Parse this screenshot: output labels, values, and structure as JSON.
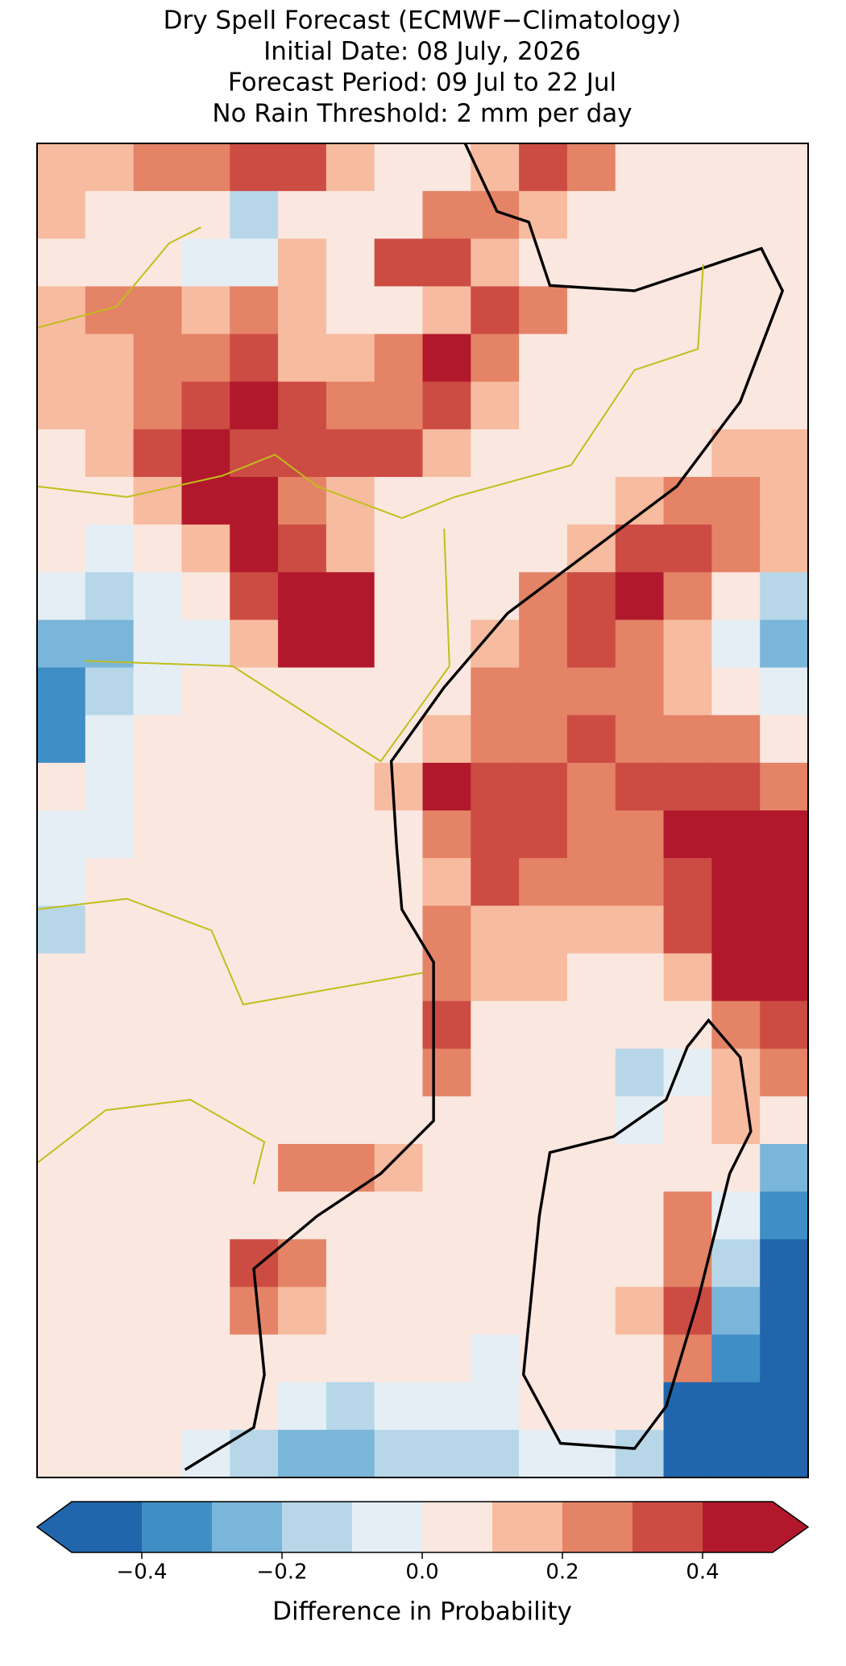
{
  "chart_data": {
    "type": "heatmap",
    "title": [
      "Dry Spell Forecast (ECMWF−Climatology)",
      "Initial Date: 08 July, 2026",
      "Forecast Period: 09 Jul to 22 Jul",
      "No Rain Threshold: 2 mm per day"
    ],
    "values": [
      [
        0.15,
        0.15,
        0.2,
        0.25,
        0.3,
        0.35,
        0.15,
        0.05,
        0.05,
        0.1,
        0.35,
        0.25,
        0.05,
        0.05,
        0.05,
        0.05
      ],
      [
        0.1,
        0.05,
        0.05,
        0.0,
        -0.15,
        0.05,
        0.05,
        0.05,
        0.25,
        0.2,
        0.1,
        0.05,
        0.05,
        0.05,
        0.05,
        0.05
      ],
      [
        0.05,
        0.0,
        0.0,
        -0.05,
        -0.1,
        0.1,
        0.05,
        0.3,
        0.35,
        0.15,
        0.05,
        0.05,
        0.05,
        0.05,
        0.05,
        0.05
      ],
      [
        0.15,
        0.2,
        0.2,
        0.15,
        0.25,
        0.1,
        0.05,
        0.05,
        0.15,
        0.3,
        0.2,
        0.05,
        0.05,
        0.05,
        0.05,
        0.05
      ],
      [
        0.1,
        0.15,
        0.2,
        0.25,
        0.35,
        0.15,
        0.1,
        0.2,
        0.4,
        0.25,
        0.05,
        0.05,
        0.05,
        0.05,
        0.05,
        0.05
      ],
      [
        0.1,
        0.15,
        0.25,
        0.35,
        0.4,
        0.3,
        0.2,
        0.25,
        0.35,
        0.1,
        0.05,
        0.05,
        0.05,
        0.05,
        0.05,
        0.05
      ],
      [
        0.05,
        0.15,
        0.3,
        0.4,
        0.35,
        0.3,
        0.3,
        0.35,
        0.15,
        0.05,
        0.05,
        0.05,
        0.05,
        0.05,
        0.1,
        0.15
      ],
      [
        0.05,
        0.05,
        0.1,
        0.4,
        0.4,
        0.25,
        0.1,
        0.05,
        0.05,
        0.05,
        0.05,
        0.05,
        0.15,
        0.25,
        0.2,
        0.15
      ],
      [
        0.0,
        -0.05,
        0.05,
        0.15,
        0.45,
        0.35,
        0.1,
        0.05,
        0.05,
        0.05,
        0.05,
        0.15,
        0.35,
        0.3,
        0.2,
        0.1
      ],
      [
        -0.1,
        -0.2,
        -0.05,
        0.05,
        0.3,
        0.45,
        0.4,
        0.05,
        0.05,
        0.05,
        0.2,
        0.35,
        0.45,
        0.25,
        0.05,
        -0.15
      ],
      [
        -0.3,
        -0.25,
        -0.1,
        -0.05,
        0.1,
        0.45,
        0.4,
        0.05,
        0.05,
        0.1,
        0.2,
        0.3,
        0.25,
        0.1,
        -0.1,
        -0.25
      ],
      [
        -0.4,
        -0.15,
        -0.05,
        0.0,
        0.0,
        0.05,
        0.05,
        0.05,
        0.05,
        0.2,
        0.2,
        0.25,
        0.2,
        0.15,
        0.0,
        -0.1
      ],
      [
        -0.4,
        -0.1,
        0.0,
        0.0,
        0.0,
        0.05,
        0.05,
        0.05,
        0.15,
        0.25,
        0.2,
        0.3,
        0.25,
        0.2,
        0.2,
        0.05
      ],
      [
        0.0,
        -0.05,
        0.0,
        0.0,
        0.05,
        0.05,
        0.05,
        0.1,
        0.45,
        0.35,
        0.3,
        0.25,
        0.3,
        0.35,
        0.3,
        0.25
      ],
      [
        -0.05,
        -0.1,
        0.0,
        0.0,
        0.05,
        0.05,
        0.05,
        0.05,
        0.25,
        0.3,
        0.35,
        0.2,
        0.25,
        0.45,
        0.45,
        0.45
      ],
      [
        -0.1,
        0.0,
        0.0,
        0.05,
        0.05,
        0.05,
        0.05,
        0.05,
        0.1,
        0.3,
        0.25,
        0.2,
        0.2,
        0.35,
        0.45,
        0.45
      ],
      [
        -0.15,
        0.0,
        0.0,
        0.05,
        0.05,
        0.05,
        0.05,
        0.05,
        0.2,
        0.15,
        0.15,
        0.1,
        0.15,
        0.3,
        0.4,
        0.45
      ],
      [
        0.05,
        0.0,
        0.05,
        0.0,
        0.05,
        0.05,
        0.05,
        0.05,
        0.25,
        0.1,
        0.1,
        0.05,
        0.0,
        0.1,
        0.4,
        0.45
      ],
      [
        0.05,
        0.05,
        0.05,
        0.0,
        0.05,
        0.05,
        0.05,
        0.05,
        0.3,
        0.05,
        0.05,
        0.05,
        0.0,
        0.0,
        0.2,
        0.3
      ],
      [
        0.05,
        0.05,
        0.05,
        0.05,
        0.05,
        0.05,
        0.05,
        0.05,
        0.25,
        0.05,
        0.05,
        0.0,
        -0.15,
        -0.05,
        0.1,
        0.2
      ],
      [
        0.05,
        0.05,
        0.0,
        0.05,
        0.05,
        0.05,
        0.05,
        0.05,
        0.05,
        0.05,
        0.05,
        0.0,
        -0.05,
        0.0,
        0.1,
        0.0
      ],
      [
        0.0,
        0.0,
        0.05,
        0.05,
        0.05,
        0.25,
        0.2,
        0.1,
        0.05,
        0.0,
        0.0,
        0.0,
        0.0,
        0.05,
        0.0,
        -0.3
      ],
      [
        0.05,
        0.0,
        0.0,
        0.05,
        0.05,
        0.05,
        0.05,
        0.0,
        0.0,
        0.0,
        0.0,
        0.0,
        0.0,
        0.2,
        -0.1,
        -0.35
      ],
      [
        0.0,
        0.0,
        0.0,
        0.05,
        0.3,
        0.2,
        0.05,
        0.0,
        0.05,
        0.0,
        0.0,
        0.0,
        0.0,
        0.25,
        -0.15,
        -0.45
      ],
      [
        0.05,
        0.0,
        0.0,
        0.05,
        0.2,
        0.15,
        0.05,
        0.05,
        0.0,
        0.0,
        0.0,
        0.0,
        0.1,
        0.3,
        -0.3,
        -0.45
      ],
      [
        0.05,
        0.05,
        0.0,
        0.0,
        0.05,
        0.05,
        0.05,
        0.0,
        0.0,
        -0.05,
        0.0,
        0.0,
        0.0,
        0.2,
        -0.4,
        -0.45
      ],
      [
        0.0,
        0.0,
        0.0,
        0.05,
        0.0,
        -0.1,
        -0.15,
        -0.1,
        -0.1,
        -0.05,
        0.0,
        0.0,
        0.0,
        -0.45,
        -0.45,
        -0.45
      ],
      [
        0.0,
        0.0,
        0.0,
        -0.1,
        -0.2,
        -0.25,
        -0.3,
        -0.2,
        -0.2,
        -0.15,
        -0.1,
        -0.1,
        -0.2,
        -0.45,
        -0.45,
        -0.45
      ]
    ],
    "levels": [
      -0.5,
      -0.4,
      -0.3,
      -0.2,
      -0.1,
      0,
      0.1,
      0.2,
      0.3,
      0.4,
      0.5
    ],
    "colors": [
      "#2166ac",
      "#3f8ec5",
      "#7ab6d9",
      "#b7d7e9",
      "#e5eef4",
      "#fae7df",
      "#f7bba0",
      "#e48366",
      "#cc4c44",
      "#b2182b"
    ],
    "colorbar_label": "Difference in Probability",
    "colorbar_ticks": [
      {
        "value": -0.4,
        "label": "−0.4"
      },
      {
        "value": -0.2,
        "label": "−0.2"
      },
      {
        "value": 0,
        "label": "0.0"
      },
      0.2,
      0.4
    ]
  }
}
